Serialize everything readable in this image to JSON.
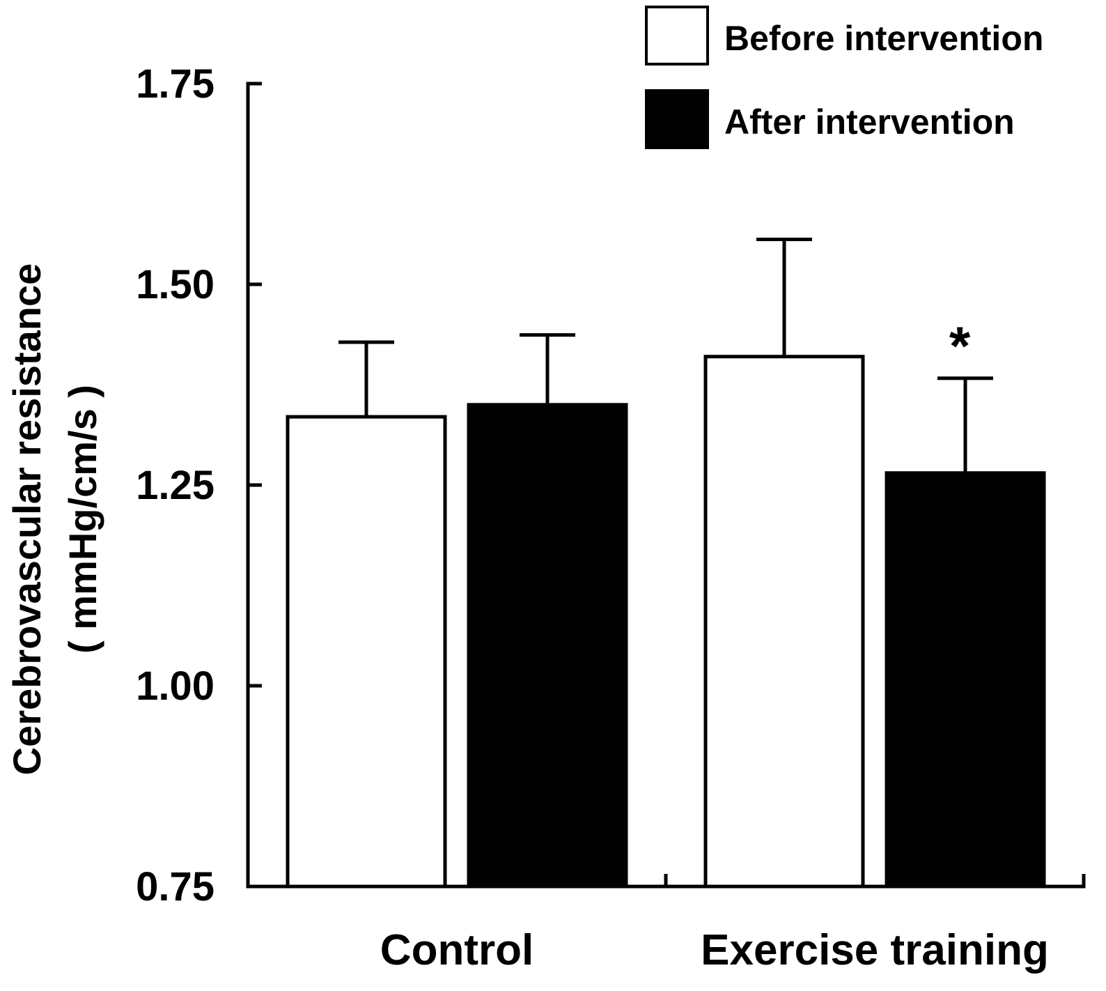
{
  "chart_data": {
    "type": "bar",
    "title": "",
    "ylabel": "Cerebrovascular resistance",
    "ylabel_units": "( mmHg/cm/s )",
    "xlabel": "",
    "ylim": [
      0.75,
      1.75
    ],
    "yticks": [
      "0.75",
      "1.00",
      "1.25",
      "1.50",
      "1.75"
    ],
    "categories": [
      "Control",
      "Exercise training"
    ],
    "series": [
      {
        "name": "Before intervention",
        "fill": "#ffffff",
        "values": [
          1.335,
          1.41
        ],
        "error_upper": [
          1.428,
          1.556
        ]
      },
      {
        "name": "After intervention",
        "fill": "#000000",
        "values": [
          1.35,
          1.265
        ],
        "error_upper": [
          1.437,
          1.383
        ]
      }
    ],
    "annotations": [
      {
        "text": "*",
        "category": "Exercise training",
        "series": "After intervention"
      }
    ],
    "legend_position": "top-right",
    "grid": false
  }
}
